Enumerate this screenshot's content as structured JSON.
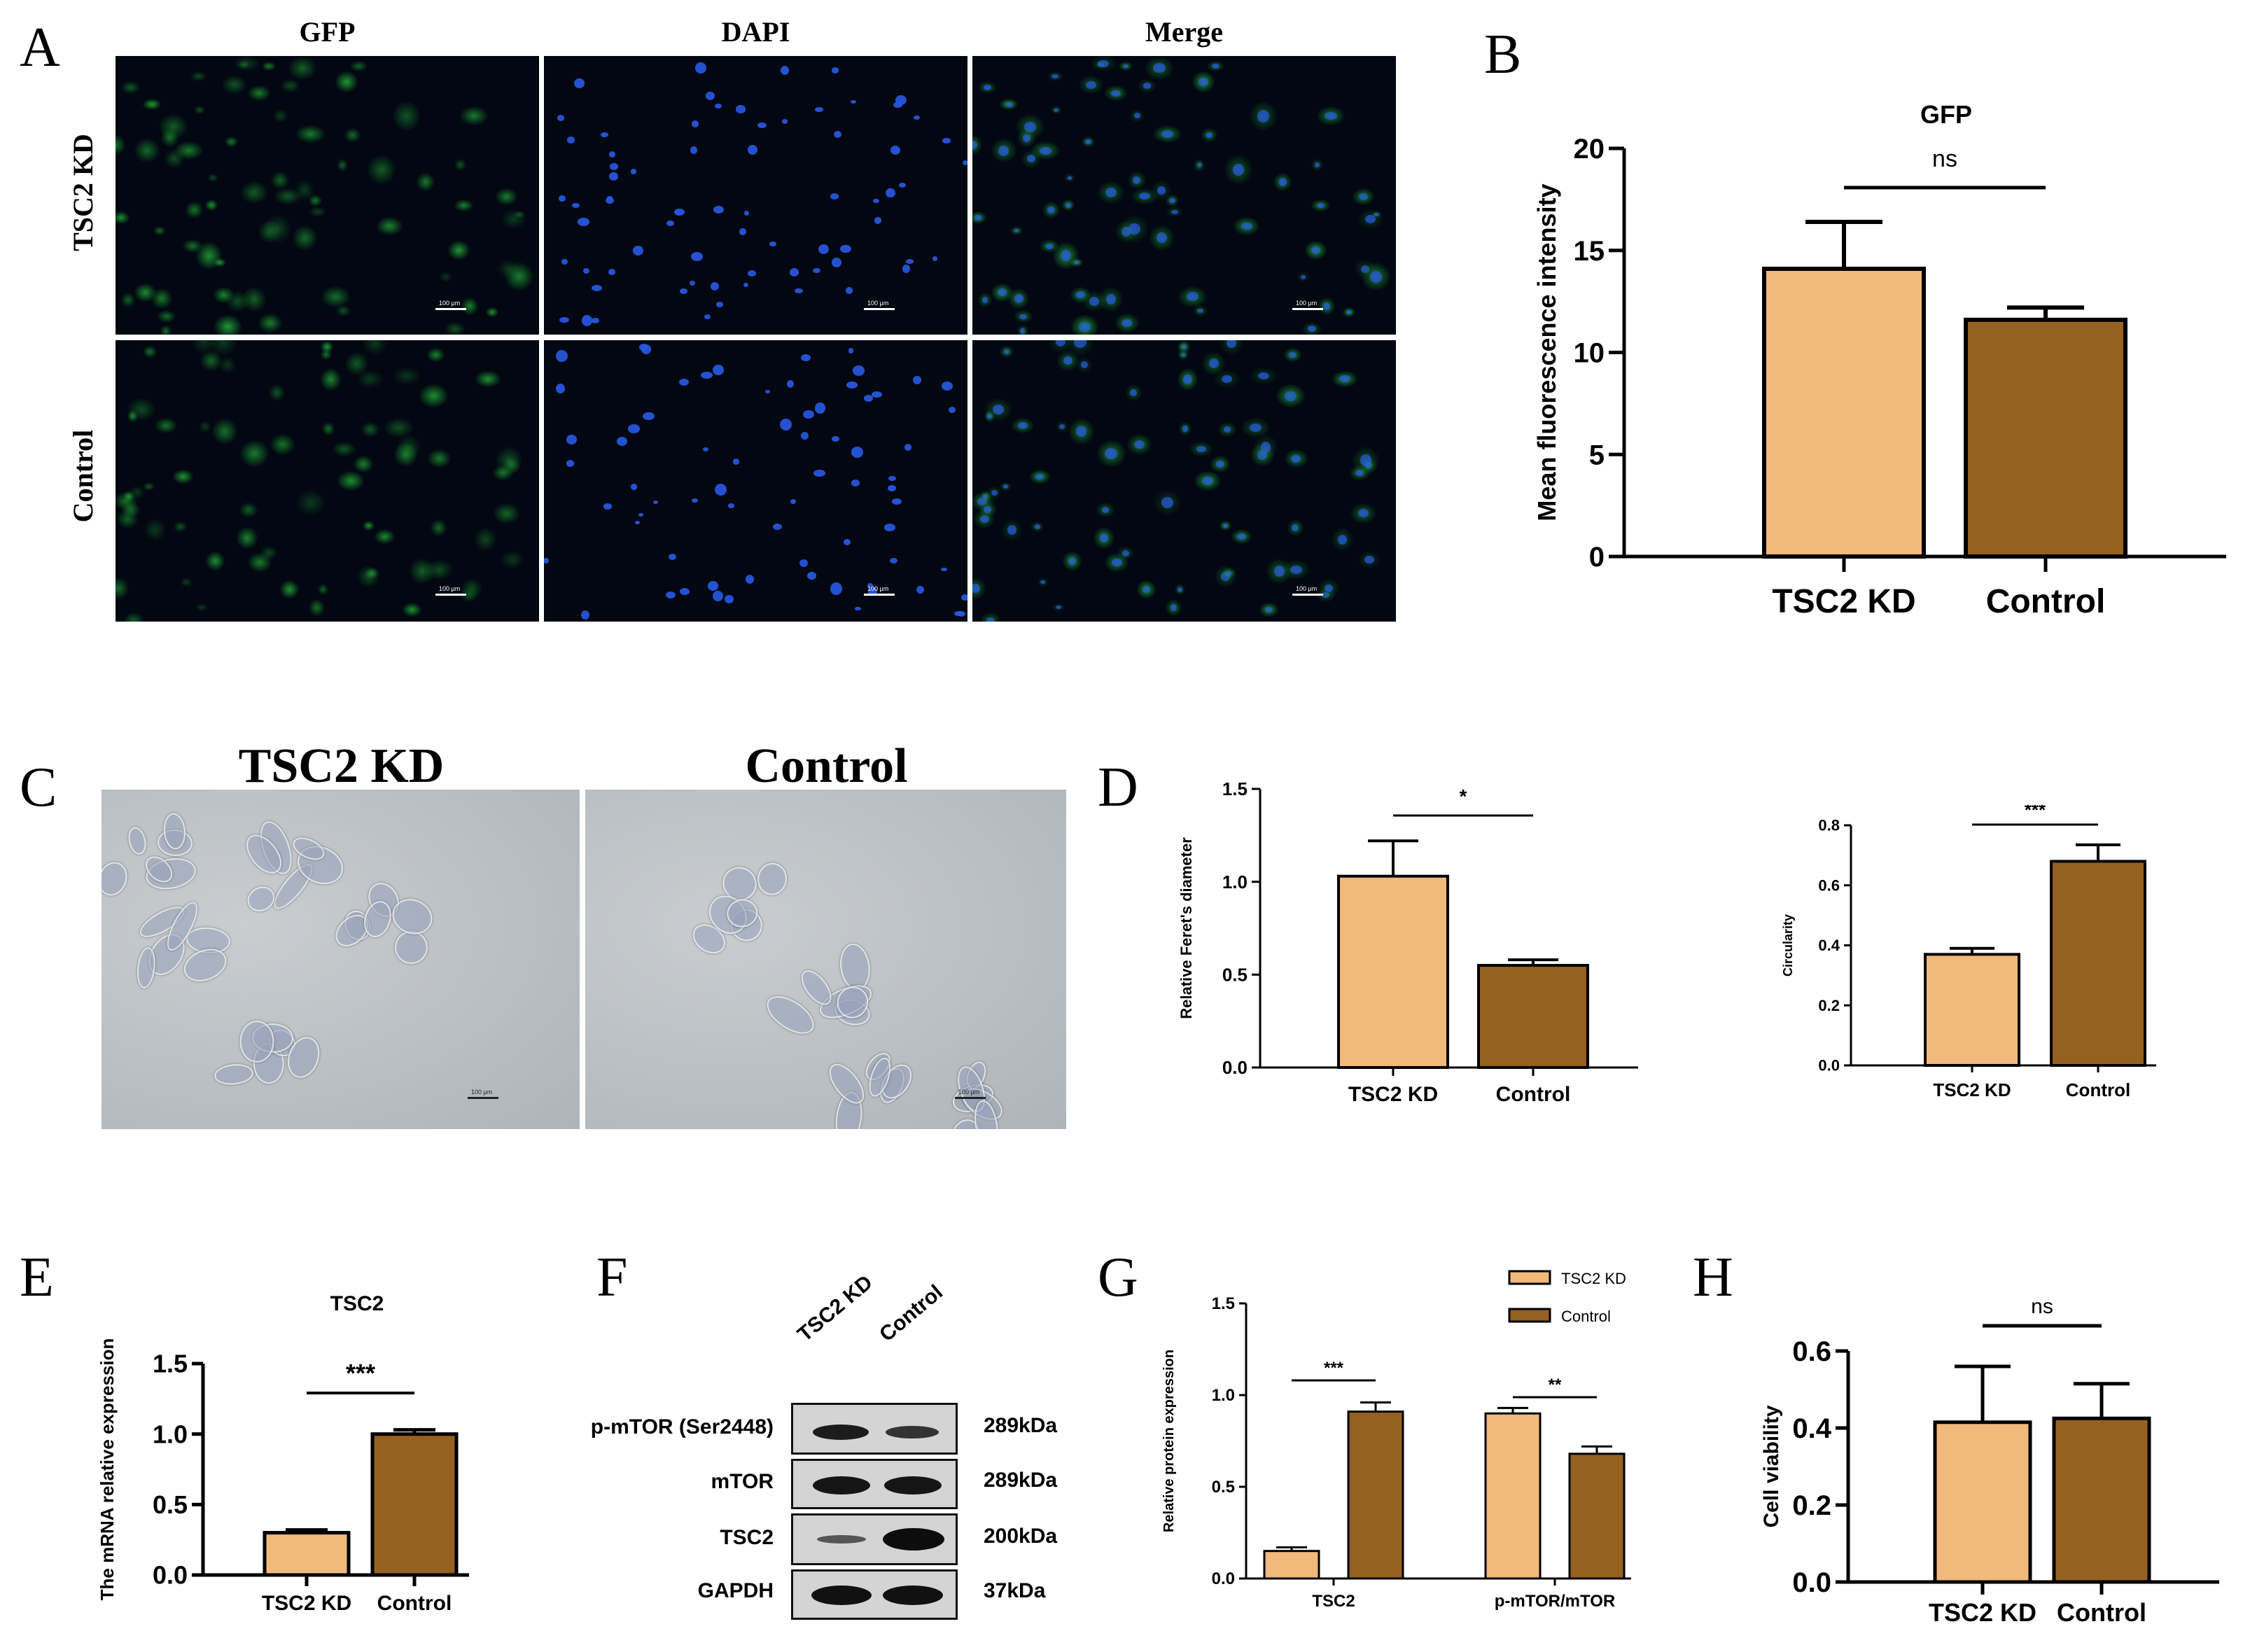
{
  "panels": {
    "A": "A",
    "B": "B",
    "C": "C",
    "D": "D",
    "E": "E",
    "F": "F",
    "G": "G",
    "H": "H"
  },
  "panel_a": {
    "columns": [
      "GFP",
      "DAPI",
      "Merge"
    ],
    "rows": [
      "TSC2 KD",
      "Control"
    ],
    "scale_bar": "100 μm"
  },
  "panel_c": {
    "columns": [
      "TSC2 KD",
      "Control"
    ],
    "scale_bar": "100 μm"
  },
  "panel_f": {
    "lanes": [
      "TSC2 KD",
      "Control"
    ],
    "proteins": [
      "p-mTOR (Ser2448)",
      "mTOR",
      "TSC2",
      "GAPDH"
    ],
    "sizes": [
      "289kDa",
      "289kDa",
      "200kDa",
      "37kDa"
    ]
  },
  "colors": {
    "light": "#f2b97c",
    "dark": "#956121",
    "stroke": "#000000"
  },
  "chart_data": [
    {
      "panel": "B",
      "type": "bar",
      "title": "GFP",
      "categories": [
        "TSC2 KD",
        "Control"
      ],
      "values": [
        14.1,
        11.6
      ],
      "errors": [
        2.3,
        0.6
      ],
      "ylabel": "Mean fluorescence intensity",
      "ylim": [
        0,
        20
      ],
      "yticks": [
        0,
        5,
        10,
        15,
        20
      ],
      "significance": "ns"
    },
    {
      "panel": "D1",
      "type": "bar",
      "categories": [
        "TSC2 KD",
        "Control"
      ],
      "values": [
        1.03,
        0.55
      ],
      "errors": [
        0.19,
        0.03
      ],
      "ylabel": "Relative Feret's diameter",
      "ylim": [
        0,
        1.5
      ],
      "yticks": [
        "0.0",
        "0.5",
        "1.0",
        "1.5"
      ],
      "significance": "*"
    },
    {
      "panel": "D2",
      "type": "bar",
      "categories": [
        "TSC2 KD",
        "Control"
      ],
      "values": [
        0.37,
        0.68
      ],
      "errors": [
        0.02,
        0.055
      ],
      "ylabel": "Circularity",
      "ylim": [
        0,
        0.8
      ],
      "yticks": [
        "0.0",
        "0.2",
        "0.4",
        "0.6",
        "0.8"
      ],
      "significance": "***"
    },
    {
      "panel": "E",
      "type": "bar",
      "title": "TSC2",
      "categories": [
        "TSC2 KD",
        "Control"
      ],
      "values": [
        0.3,
        1.0
      ],
      "errors": [
        0.02,
        0.03
      ],
      "ylabel": "The mRNA relative  expression",
      "ylim": [
        0,
        1.5
      ],
      "yticks": [
        "0.0",
        "0.5",
        "1.0",
        "1.5"
      ],
      "significance": "***"
    },
    {
      "panel": "G",
      "type": "bar",
      "categories": [
        "TSC2",
        "p-mTOR/mTOR"
      ],
      "series": [
        {
          "name": "TSC2 KD",
          "values": [
            0.15,
            0.9
          ],
          "errors": [
            0.02,
            0.03
          ]
        },
        {
          "name": "Control",
          "values": [
            0.91,
            0.68
          ],
          "errors": [
            0.05,
            0.04
          ]
        }
      ],
      "ylabel": "Relative protein expression",
      "ylim": [
        0,
        1.5
      ],
      "yticks": [
        "0.0",
        "0.5",
        "1.0",
        "1.5"
      ],
      "significance": [
        "***",
        "**"
      ],
      "legend": "top-right"
    },
    {
      "panel": "H",
      "type": "bar",
      "categories": [
        "TSC2 KD",
        "Control"
      ],
      "values": [
        0.415,
        0.425
      ],
      "errors": [
        0.145,
        0.09
      ],
      "ylabel": "Cell viability",
      "ylim": [
        0,
        0.6
      ],
      "yticks": [
        "0.0",
        "0.2",
        "0.4",
        "0.6"
      ],
      "significance": "ns"
    }
  ]
}
